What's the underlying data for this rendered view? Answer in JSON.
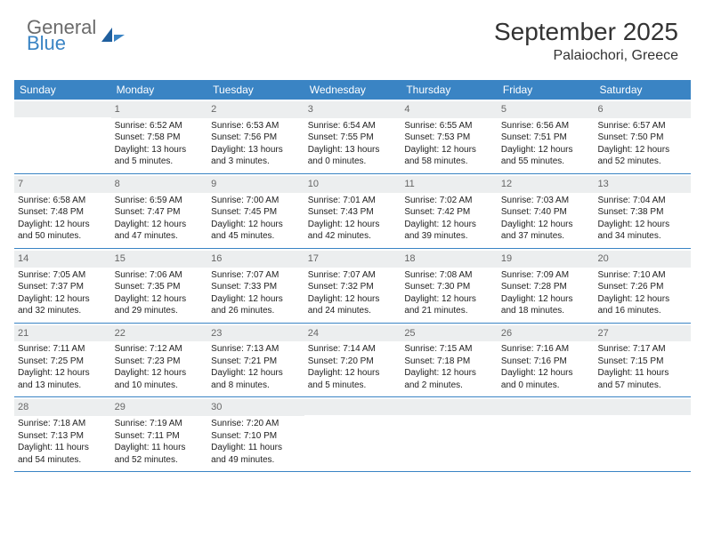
{
  "brand": {
    "general": "General",
    "blue": "Blue"
  },
  "title": "September 2025",
  "location": "Palaiochori, Greece",
  "colors": {
    "header_bg": "#3a84c4",
    "header_text": "#ffffff",
    "daynum_bg": "#eceeef",
    "border": "#3a84c4",
    "logo_gray": "#6b6b6b",
    "logo_blue": "#3a84c4"
  },
  "day_names": [
    "Sunday",
    "Monday",
    "Tuesday",
    "Wednesday",
    "Thursday",
    "Friday",
    "Saturday"
  ],
  "weeks": [
    [
      {
        "day": "",
        "sunrise": "",
        "sunset": "",
        "daylight1": "",
        "daylight2": ""
      },
      {
        "day": "1",
        "sunrise": "Sunrise: 6:52 AM",
        "sunset": "Sunset: 7:58 PM",
        "daylight1": "Daylight: 13 hours",
        "daylight2": "and 5 minutes."
      },
      {
        "day": "2",
        "sunrise": "Sunrise: 6:53 AM",
        "sunset": "Sunset: 7:56 PM",
        "daylight1": "Daylight: 13 hours",
        "daylight2": "and 3 minutes."
      },
      {
        "day": "3",
        "sunrise": "Sunrise: 6:54 AM",
        "sunset": "Sunset: 7:55 PM",
        "daylight1": "Daylight: 13 hours",
        "daylight2": "and 0 minutes."
      },
      {
        "day": "4",
        "sunrise": "Sunrise: 6:55 AM",
        "sunset": "Sunset: 7:53 PM",
        "daylight1": "Daylight: 12 hours",
        "daylight2": "and 58 minutes."
      },
      {
        "day": "5",
        "sunrise": "Sunrise: 6:56 AM",
        "sunset": "Sunset: 7:51 PM",
        "daylight1": "Daylight: 12 hours",
        "daylight2": "and 55 minutes."
      },
      {
        "day": "6",
        "sunrise": "Sunrise: 6:57 AM",
        "sunset": "Sunset: 7:50 PM",
        "daylight1": "Daylight: 12 hours",
        "daylight2": "and 52 minutes."
      }
    ],
    [
      {
        "day": "7",
        "sunrise": "Sunrise: 6:58 AM",
        "sunset": "Sunset: 7:48 PM",
        "daylight1": "Daylight: 12 hours",
        "daylight2": "and 50 minutes."
      },
      {
        "day": "8",
        "sunrise": "Sunrise: 6:59 AM",
        "sunset": "Sunset: 7:47 PM",
        "daylight1": "Daylight: 12 hours",
        "daylight2": "and 47 minutes."
      },
      {
        "day": "9",
        "sunrise": "Sunrise: 7:00 AM",
        "sunset": "Sunset: 7:45 PM",
        "daylight1": "Daylight: 12 hours",
        "daylight2": "and 45 minutes."
      },
      {
        "day": "10",
        "sunrise": "Sunrise: 7:01 AM",
        "sunset": "Sunset: 7:43 PM",
        "daylight1": "Daylight: 12 hours",
        "daylight2": "and 42 minutes."
      },
      {
        "day": "11",
        "sunrise": "Sunrise: 7:02 AM",
        "sunset": "Sunset: 7:42 PM",
        "daylight1": "Daylight: 12 hours",
        "daylight2": "and 39 minutes."
      },
      {
        "day": "12",
        "sunrise": "Sunrise: 7:03 AM",
        "sunset": "Sunset: 7:40 PM",
        "daylight1": "Daylight: 12 hours",
        "daylight2": "and 37 minutes."
      },
      {
        "day": "13",
        "sunrise": "Sunrise: 7:04 AM",
        "sunset": "Sunset: 7:38 PM",
        "daylight1": "Daylight: 12 hours",
        "daylight2": "and 34 minutes."
      }
    ],
    [
      {
        "day": "14",
        "sunrise": "Sunrise: 7:05 AM",
        "sunset": "Sunset: 7:37 PM",
        "daylight1": "Daylight: 12 hours",
        "daylight2": "and 32 minutes."
      },
      {
        "day": "15",
        "sunrise": "Sunrise: 7:06 AM",
        "sunset": "Sunset: 7:35 PM",
        "daylight1": "Daylight: 12 hours",
        "daylight2": "and 29 minutes."
      },
      {
        "day": "16",
        "sunrise": "Sunrise: 7:07 AM",
        "sunset": "Sunset: 7:33 PM",
        "daylight1": "Daylight: 12 hours",
        "daylight2": "and 26 minutes."
      },
      {
        "day": "17",
        "sunrise": "Sunrise: 7:07 AM",
        "sunset": "Sunset: 7:32 PM",
        "daylight1": "Daylight: 12 hours",
        "daylight2": "and 24 minutes."
      },
      {
        "day": "18",
        "sunrise": "Sunrise: 7:08 AM",
        "sunset": "Sunset: 7:30 PM",
        "daylight1": "Daylight: 12 hours",
        "daylight2": "and 21 minutes."
      },
      {
        "day": "19",
        "sunrise": "Sunrise: 7:09 AM",
        "sunset": "Sunset: 7:28 PM",
        "daylight1": "Daylight: 12 hours",
        "daylight2": "and 18 minutes."
      },
      {
        "day": "20",
        "sunrise": "Sunrise: 7:10 AM",
        "sunset": "Sunset: 7:26 PM",
        "daylight1": "Daylight: 12 hours",
        "daylight2": "and 16 minutes."
      }
    ],
    [
      {
        "day": "21",
        "sunrise": "Sunrise: 7:11 AM",
        "sunset": "Sunset: 7:25 PM",
        "daylight1": "Daylight: 12 hours",
        "daylight2": "and 13 minutes."
      },
      {
        "day": "22",
        "sunrise": "Sunrise: 7:12 AM",
        "sunset": "Sunset: 7:23 PM",
        "daylight1": "Daylight: 12 hours",
        "daylight2": "and 10 minutes."
      },
      {
        "day": "23",
        "sunrise": "Sunrise: 7:13 AM",
        "sunset": "Sunset: 7:21 PM",
        "daylight1": "Daylight: 12 hours",
        "daylight2": "and 8 minutes."
      },
      {
        "day": "24",
        "sunrise": "Sunrise: 7:14 AM",
        "sunset": "Sunset: 7:20 PM",
        "daylight1": "Daylight: 12 hours",
        "daylight2": "and 5 minutes."
      },
      {
        "day": "25",
        "sunrise": "Sunrise: 7:15 AM",
        "sunset": "Sunset: 7:18 PM",
        "daylight1": "Daylight: 12 hours",
        "daylight2": "and 2 minutes."
      },
      {
        "day": "26",
        "sunrise": "Sunrise: 7:16 AM",
        "sunset": "Sunset: 7:16 PM",
        "daylight1": "Daylight: 12 hours",
        "daylight2": "and 0 minutes."
      },
      {
        "day": "27",
        "sunrise": "Sunrise: 7:17 AM",
        "sunset": "Sunset: 7:15 PM",
        "daylight1": "Daylight: 11 hours",
        "daylight2": "and 57 minutes."
      }
    ],
    [
      {
        "day": "28",
        "sunrise": "Sunrise: 7:18 AM",
        "sunset": "Sunset: 7:13 PM",
        "daylight1": "Daylight: 11 hours",
        "daylight2": "and 54 minutes."
      },
      {
        "day": "29",
        "sunrise": "Sunrise: 7:19 AM",
        "sunset": "Sunset: 7:11 PM",
        "daylight1": "Daylight: 11 hours",
        "daylight2": "and 52 minutes."
      },
      {
        "day": "30",
        "sunrise": "Sunrise: 7:20 AM",
        "sunset": "Sunset: 7:10 PM",
        "daylight1": "Daylight: 11 hours",
        "daylight2": "and 49 minutes."
      },
      {
        "day": "",
        "sunrise": "",
        "sunset": "",
        "daylight1": "",
        "daylight2": ""
      },
      {
        "day": "",
        "sunrise": "",
        "sunset": "",
        "daylight1": "",
        "daylight2": ""
      },
      {
        "day": "",
        "sunrise": "",
        "sunset": "",
        "daylight1": "",
        "daylight2": ""
      },
      {
        "day": "",
        "sunrise": "",
        "sunset": "",
        "daylight1": "",
        "daylight2": ""
      }
    ]
  ]
}
